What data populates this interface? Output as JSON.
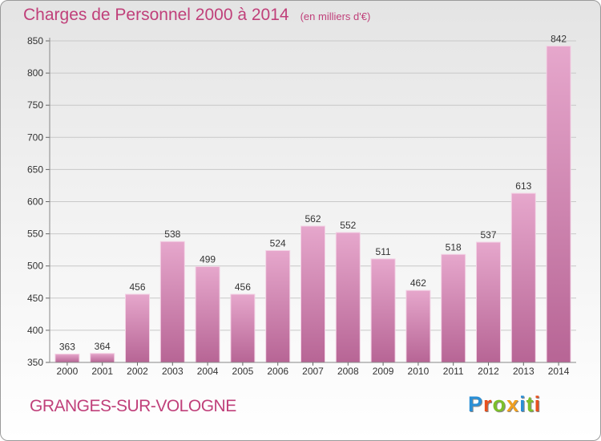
{
  "chart_data": {
    "type": "bar",
    "title": "Charges de Personnel 2000 à 2014",
    "subtitle": "(en milliers d'€)",
    "categories": [
      "2000",
      "2001",
      "2002",
      "2003",
      "2004",
      "2005",
      "2006",
      "2007",
      "2008",
      "2009",
      "2010",
      "2011",
      "2012",
      "2013",
      "2014"
    ],
    "values": [
      363,
      364,
      456,
      538,
      499,
      456,
      524,
      562,
      552,
      511,
      462,
      518,
      537,
      613,
      842
    ],
    "ylim": [
      350,
      850
    ],
    "yticks": [
      350,
      400,
      450,
      500,
      550,
      600,
      650,
      700,
      750,
      800,
      850
    ],
    "grid": true,
    "bar_color": "#d77fb0",
    "title_color": "#c0407a"
  },
  "footer": {
    "commune": "GRANGES-SUR-VOLOGNE",
    "logo_letters": [
      {
        "char": "P",
        "color": "#2a8fd6"
      },
      {
        "char": "r",
        "color": "#e8501e"
      },
      {
        "char": "o",
        "color": "#7cbf2a"
      },
      {
        "char": "x",
        "color": "#f0a020"
      },
      {
        "char": "i",
        "color": "#2a8fd6"
      },
      {
        "char": "t",
        "color": "#7cbf2a"
      },
      {
        "char": "i",
        "color": "#e8501e"
      }
    ]
  }
}
